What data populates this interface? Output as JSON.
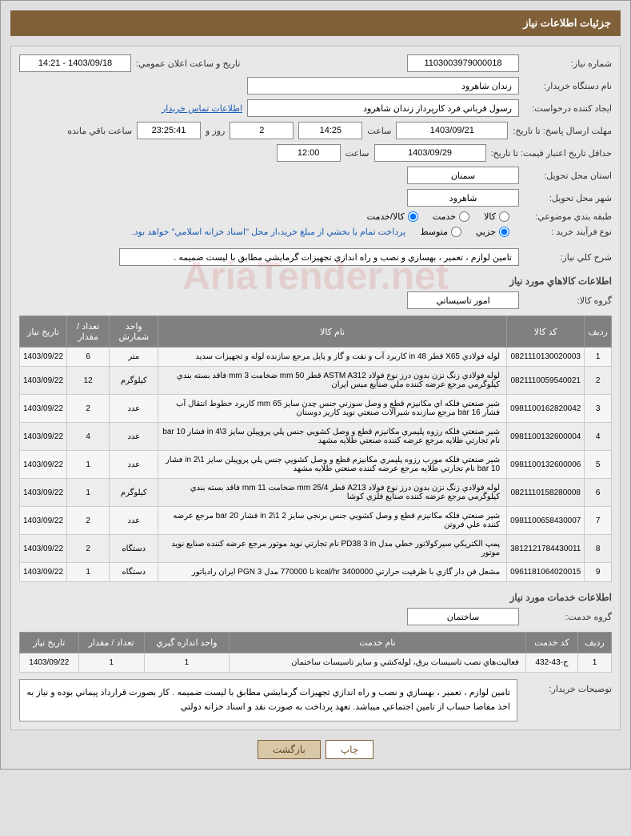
{
  "header_title": "جزئيات اطلاعات نياز",
  "watermark": "AriaTender.net",
  "form": {
    "need_number_label": "شماره نياز:",
    "need_number": "1103003979000018",
    "announce_date_label": "تاريخ و ساعت اعلان عمومي:",
    "announce_date": "1403/09/18 - 14:21",
    "buyer_org_label": "نام دستگاه خريدار:",
    "buyer_org": "زندان شاهرود",
    "requester_label": "ايجاد كننده درخواست:",
    "requester": "رسول قرباني فرد كارپرداز زندان شاهرود",
    "contact_link": "اطلاعات تماس خريدار",
    "response_deadline_label": "مهلت ارسال پاسخ: تا تاريخ:",
    "response_date": "1403/09/21",
    "time_label": "ساعت",
    "response_time": "14:25",
    "days_count": "2",
    "days_and": "روز و",
    "remaining_time": "23:25:41",
    "remaining_label": "ساعت باقي مانده",
    "validity_label": "حداقل تاريخ اعتبار قيمت: تا تاريخ:",
    "validity_date": "1403/09/29",
    "validity_time": "12:00",
    "province_label": "استان محل تحويل:",
    "province": "سمنان",
    "city_label": "شهر محل تحويل:",
    "city": "شاهرود",
    "category_label": "طبقه بندي موضوعي:",
    "opt_goods": "كالا",
    "opt_service": "خدمت",
    "opt_goods_service": "كالا/خدمت",
    "purchase_process_label": "نوع فرآيند خريد :",
    "opt_partial": "جزيي",
    "opt_medium": "متوسط",
    "payment_text": "پرداخت تمام يا بخشي از مبلغ خريد،از محل \"اسناد خزانه اسلامي\" خواهد بود.",
    "general_desc_label": "شرح كلي نياز:",
    "general_desc": "تامين لوازم ، تعمير ، بهسازي و نصب و راه اندازي تجهيزات گرمايشي مطابق با ليست ضميمه ."
  },
  "goods_section_title": "اطلاعات كالاهاي مورد نياز",
  "goods_group_label": "گروه كالا:",
  "goods_group": "امور تاسيساتي",
  "goods_table": {
    "columns": [
      "رديف",
      "كد كالا",
      "نام كالا",
      "واحد شمارش",
      "تعداد / مقدار",
      "تاريخ نياز"
    ],
    "rows": [
      [
        "1",
        "0821110130020003",
        "لوله فولادي X65 قطر 48 in كاربرد آب و نفت و گاز و پايل مرجع سازنده لوله و تجهيزات سديد",
        "متر",
        "6",
        "1403/09/22"
      ],
      [
        "2",
        "0821110059540021",
        "لوله فولادي زنگ نزن بدون درز نوع فولاد ASTM A312 قطر mm 50 ضخامت mm 3 فاقد بسته بندي كيلوگرمي مرجع عرضه كننده ملي صنايع ميس ايران",
        "كيلوگرم",
        "12",
        "1403/09/22"
      ],
      [
        "3",
        "0981100162820042",
        "شير صنعتي فلكه اي مكانيزم قطع و وصل سوزني جنس چدن سايز mm 65 كاربرد خطوط انتقال آب فشار bar 16 مرجع سازنده شيرآلات صنعتي نويد كاريز دوستان",
        "عدد",
        "2",
        "1403/09/22"
      ],
      [
        "4",
        "0981100132600004",
        "شير صنعتي فلكه رزوه پليمري مكانيزم قطع و وصل كشويي جنس پلي پروپيلن سايز in 4\\3 فشار bar 10 نام تجارتي طلايه مرجع عرضه كننده صنعتي طلايه مشهد",
        "عدد",
        "4",
        "1403/09/22"
      ],
      [
        "5",
        "0981100132600006",
        "شير صنعتي فلكه مورب رزوه پليمري مكانيزم قطع و وصل كشويي جنس پلي پروپيلن سايز in 2\\1 فشار bar 10 نام تجارتي طلايه مرجع عرضه كننده صنعتي طلايه مشهد",
        "عدد",
        "1",
        "1403/09/22"
      ],
      [
        "6",
        "0821110158280008",
        "لوله فولادي زنگ نزن بدون درز نوع فولاد A213 قطر mm 25/4 ضخامت mm 11 فاقد بسته بندي كيلوگرمي مرجع عرضه كننده صنايع فلزي كوشا",
        "كيلوگرم",
        "1",
        "1403/09/22"
      ],
      [
        "7",
        "0981100658430007",
        "شير صنعتي فلكه مكانيزم قطع و وصل كشويي جنس برنجي سايز in 2\\1 2 فشار bar 20 مرجع عرضه كننده علي فروتن",
        "عدد",
        "2",
        "1403/09/22"
      ],
      [
        "8",
        "3812121784430011",
        "پمپ الكتريكي سيركولاتور خطي مدل PD38 3 in نام تجارتي نويد موتور مرجع عرضه كننده صنايع نويد موتور",
        "دستگاه",
        "2",
        "1403/09/22"
      ],
      [
        "9",
        "0961181064020015",
        "مشعل فن دار گازي با ظرفيت حرارتي kcal/hr 3400000 تا 770000 مدل PGN 3 ايران رادياتور",
        "دستگاه",
        "1",
        "1403/09/22"
      ]
    ]
  },
  "services_section_title": "اطلاعات خدمات مورد نياز",
  "service_group_label": "گروه خدمت:",
  "service_group": "ساختمان",
  "services_table": {
    "columns": [
      "رديف",
      "كد خدمت",
      "نام خدمت",
      "واحد اندازه گيري",
      "تعداد / مقدار",
      "تاريخ نياز"
    ],
    "rows": [
      [
        "1",
        "ج-43-432",
        "فعاليت‌هاي نصب تاسيسات برق، لوله‌كشي و ساير تاسيسات ساختمان",
        "1",
        "1",
        "1403/09/22"
      ]
    ]
  },
  "buyer_notes_label": "توضيحات خريدار:",
  "buyer_notes": "تامين لوازم ، تعمير ، بهسازي و نصب و راه اندازي تجهيزات گرمايشي مطابق با ليست ضميمه . كار بصورت قرارداد پيماني بوده و نياز به اخذ مفاصا حساب از تامين اجتماعي ميباشد. تعهد پرداخت به صورت نقد و اسناد خزانه دولتي",
  "buttons": {
    "print": "چاپ",
    "back": "بازگشت"
  }
}
